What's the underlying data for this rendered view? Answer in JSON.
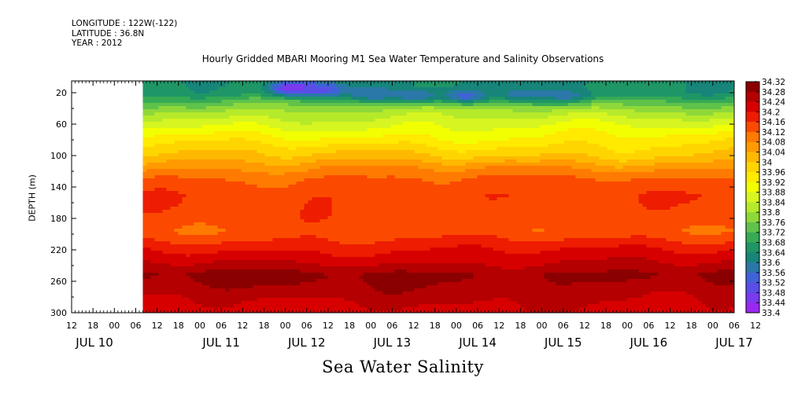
{
  "header": {
    "longitude": "LONGITUDE : 122W(-122)",
    "latitude": "LATITUDE : 36.8N",
    "year": "YEAR : 2012"
  },
  "chart_data": {
    "type": "heatmap",
    "title": "Hourly Gridded MBARI Mooring M1 Sea Water Temperature and Salinity Observations",
    "xlabel": "Sea Water Salinity",
    "ylabel": "DEPTH (m)",
    "y_ticks": [
      20,
      60,
      100,
      140,
      180,
      220,
      260,
      300
    ],
    "ylim": [
      300,
      5
    ],
    "x_hour_ticks": [
      "12",
      "18",
      "00",
      "06",
      "12",
      "18",
      "00",
      "06",
      "12",
      "18",
      "00",
      "06",
      "12",
      "18",
      "00",
      "06",
      "12",
      "18",
      "00",
      "06",
      "12",
      "18",
      "00",
      "06",
      "12",
      "18",
      "00",
      "06",
      "12",
      "18",
      "00",
      "06",
      "12"
    ],
    "x_day_labels": [
      "JUL 10",
      "JUL 11",
      "JUL 12",
      "JUL 13",
      "JUL 14",
      "JUL 15",
      "JUL 16",
      "JUL 17"
    ],
    "data_start_hour": 20,
    "colorbar": {
      "levels": [
        "34.32",
        "34.28",
        "34.24",
        "34.2",
        "34.16",
        "34.12",
        "34.08",
        "34.04",
        "34",
        "33.96",
        "33.92",
        "33.88",
        "33.84",
        "33.8",
        "33.76",
        "33.72",
        "33.68",
        "33.64",
        "33.6",
        "33.56",
        "33.52",
        "33.48",
        "33.44",
        "33.4"
      ],
      "colors": [
        "#8a0000",
        "#b40000",
        "#d70000",
        "#ee1c00",
        "#fb4a00",
        "#ff7a00",
        "#ff9a00",
        "#ffb800",
        "#ffd500",
        "#ffea00",
        "#f2ff00",
        "#d7f520",
        "#b5ea2a",
        "#8ed83a",
        "#5fc24a",
        "#36aa55",
        "#1f9666",
        "#17857a",
        "#2a78a8",
        "#3f62d8",
        "#5a4ee8",
        "#7a3aee",
        "#9a28f2",
        "#b516f5"
      ]
    },
    "depth_profile": [
      {
        "depth": 5,
        "value": 33.66
      },
      {
        "depth": 20,
        "value": 33.68
      },
      {
        "depth": 30,
        "value": 33.76
      },
      {
        "depth": 40,
        "value": 33.82
      },
      {
        "depth": 55,
        "value": 33.88
      },
      {
        "depth": 70,
        "value": 33.93
      },
      {
        "depth": 85,
        "value": 33.98
      },
      {
        "depth": 100,
        "value": 34.03
      },
      {
        "depth": 115,
        "value": 34.1
      },
      {
        "depth": 130,
        "value": 34.15
      },
      {
        "depth": 150,
        "value": 34.17
      },
      {
        "depth": 175,
        "value": 34.16
      },
      {
        "depth": 195,
        "value": 34.15
      },
      {
        "depth": 215,
        "value": 34.21
      },
      {
        "depth": 235,
        "value": 34.26
      },
      {
        "depth": 250,
        "value": 34.31
      },
      {
        "depth": 265,
        "value": 34.29
      },
      {
        "depth": 285,
        "value": 34.26
      },
      {
        "depth": 300,
        "value": 34.24
      }
    ],
    "low_salinity_patches": [
      {
        "hour": 62,
        "depth": 12,
        "value": 33.44
      },
      {
        "hour": 70,
        "depth": 14,
        "value": 33.52
      },
      {
        "hour": 84,
        "depth": 20,
        "value": 33.58
      },
      {
        "hour": 96,
        "depth": 22,
        "value": 33.58
      },
      {
        "hour": 110,
        "depth": 22,
        "value": 33.56
      },
      {
        "hour": 126,
        "depth": 20,
        "value": 33.6
      },
      {
        "hour": 138,
        "depth": 22,
        "value": 33.6
      }
    ]
  }
}
